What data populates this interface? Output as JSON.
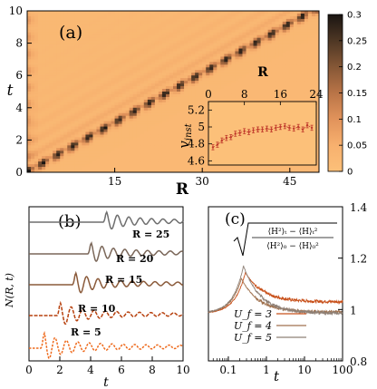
{
  "chart_data": [
    {
      "type": "heatmap",
      "panel_label": "(a)",
      "xlabel": "R",
      "ylabel": "t",
      "xlim": [
        0,
        50
      ],
      "ylim": [
        0,
        10
      ],
      "xticks": [
        15,
        30,
        45
      ],
      "yticks": [
        0,
        2,
        4,
        6,
        8,
        10
      ],
      "colorbar": {
        "min": 0,
        "max": 0.3,
        "ticks": [
          0,
          0.05,
          0.1,
          0.15,
          0.2,
          0.25,
          0.3
        ],
        "colors": [
          "#fcc079",
          "#f7b06e",
          "#e1935b",
          "#b97447",
          "#855736",
          "#4e3724",
          "#1a1512"
        ]
      },
      "front_speed": 4.9,
      "inset": {
        "type": "scatter",
        "xlabel": "R",
        "ylabel": "v_inst",
        "xlim": [
          0,
          24
        ],
        "ylim": [
          4.55,
          5.3
        ],
        "xticks": [
          0,
          8,
          16,
          24
        ],
        "yticks": [
          4.6,
          4.8,
          5,
          5.2
        ],
        "x": [
          1,
          2,
          3,
          4,
          5,
          6,
          7,
          8,
          9,
          10,
          11,
          12,
          13,
          14,
          15,
          16,
          17,
          18,
          19,
          20,
          21,
          22,
          23
        ],
        "y": [
          4.76,
          4.79,
          4.84,
          4.87,
          4.88,
          4.92,
          4.93,
          4.95,
          4.94,
          4.96,
          4.97,
          4.97,
          4.98,
          4.97,
          4.99,
          5.0,
          5.01,
          4.99,
          4.98,
          5.0,
          4.97,
          5.02,
          4.99
        ],
        "error": 0.03,
        "color": "#c0392b"
      }
    },
    {
      "type": "line",
      "panel_label": "(b)",
      "xlabel": "t",
      "ylabel": "N(R, t)",
      "xlim": [
        0,
        10
      ],
      "xticks": [
        0,
        2,
        4,
        6,
        8,
        10
      ],
      "series": [
        {
          "name": "R = 5",
          "onset": 1.0,
          "color": "#ee6a1c"
        },
        {
          "name": "R = 10",
          "onset": 2.05,
          "color": "#b7410e"
        },
        {
          "name": "R = 15",
          "onset": 3.05,
          "color": "#8a5a3a"
        },
        {
          "name": "R = 20",
          "onset": 4.05,
          "color": "#7a6658"
        },
        {
          "name": "R = 25",
          "onset": 5.05,
          "color": "#6e6e6e"
        }
      ]
    },
    {
      "type": "line",
      "panel_label": "(c)",
      "xlabel": "t",
      "ylabel_formula": {
        "num": "⟨H²⟩ₜ − ⟨H⟩ₜ²",
        "den": "⟨H²⟩₀ − ⟨H⟩₀²"
      },
      "xscale": "log",
      "xlim": [
        0.03,
        100
      ],
      "ylim": [
        0.8,
        1.4
      ],
      "xticks": [
        0.1,
        1,
        10,
        100
      ],
      "yticks": [
        0.8,
        1,
        1.2,
        1.4
      ],
      "legend_position": "bottom-right",
      "series": [
        {
          "name": "U_f = 3",
          "color": "#c8501a",
          "peak": 1.145,
          "final": 1.03
        },
        {
          "name": "U_f = 4",
          "color": "#a0724f",
          "peak": 1.12,
          "final": 0.99
        },
        {
          "name": "U_f = 5",
          "color": "#8e8076",
          "peak": 1.17,
          "final": 0.985
        }
      ]
    }
  ]
}
